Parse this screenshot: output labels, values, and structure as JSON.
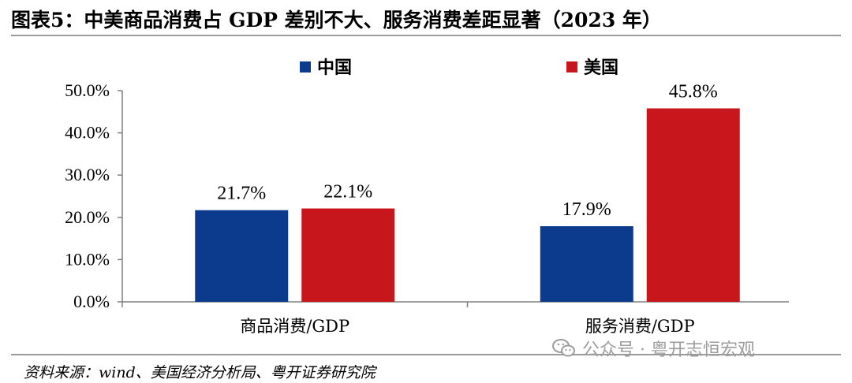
{
  "title": "图表5：中美商品消费占 GDP 差别不大、服务消费差距显著（2023 年）",
  "source": "资料来源：wind、美国经济分析局、粤开证券研究院",
  "watermark": "公众号 · 粤开志恒宏观",
  "chart_data": {
    "type": "bar",
    "title": "",
    "xlabel": "",
    "ylabel": "",
    "categories": [
      "商品消费/GDP",
      "服务消费/GDP"
    ],
    "series": [
      {
        "name": "中国",
        "color": "#0c3a8c",
        "values": [
          21.7,
          17.9
        ],
        "labels": [
          "21.7%",
          "17.9%"
        ]
      },
      {
        "name": "美国",
        "color": "#c8161d",
        "values": [
          22.1,
          45.8
        ],
        "labels": [
          "22.1%",
          "45.8%"
        ]
      }
    ],
    "ylim": [
      0,
      50
    ],
    "yticks": [
      0,
      10,
      20,
      30,
      40,
      50
    ],
    "ytick_labels": [
      "0.0%",
      "10.0%",
      "20.0%",
      "30.0%",
      "40.0%",
      "50.0%"
    ],
    "legend_position": "top-center",
    "grid": false
  }
}
